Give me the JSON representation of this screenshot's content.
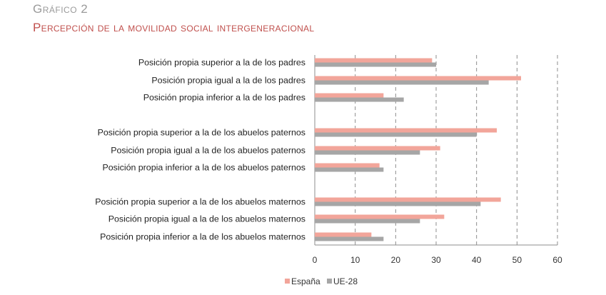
{
  "header": {
    "kicker": "Gráfico 2",
    "title": "Percepción de la movilidad social intergeneracional"
  },
  "colors": {
    "espana": "#f2a59a",
    "ue28": "#a6a6a6",
    "grid": "#8c8c8c",
    "axis": "#8c8c8c"
  },
  "chart_data": {
    "type": "bar",
    "orientation": "horizontal",
    "title": "Percepción de la movilidad social intergeneracional",
    "categories": [
      "Posición propia superior a la de los padres",
      "Posición propia igual a la de los padres",
      "Posición propia inferior a la de los padres",
      "Posición propia superior a la de los abuelos paternos",
      "Posición propia igual a la de los abuelos paternos",
      "Posición propia inferior a la de los abuelos paternos",
      "Posición propia superior a la de los abuelos maternos",
      "Posición propia igual a la de los abuelos maternos",
      "Posición propia inferior a la de los abuelos maternos"
    ],
    "series": [
      {
        "name": "España",
        "values": [
          29,
          51,
          17,
          45,
          31,
          16,
          46,
          32,
          14
        ]
      },
      {
        "name": "UE-28",
        "values": [
          30,
          43,
          22,
          40,
          26,
          17,
          41,
          26,
          17
        ]
      }
    ],
    "xlim": [
      0,
      60
    ],
    "xticks": [
      "0",
      "10",
      "20",
      "30",
      "40",
      "50",
      "60"
    ],
    "grid": "vertical dashed",
    "legend_position": "bottom"
  }
}
